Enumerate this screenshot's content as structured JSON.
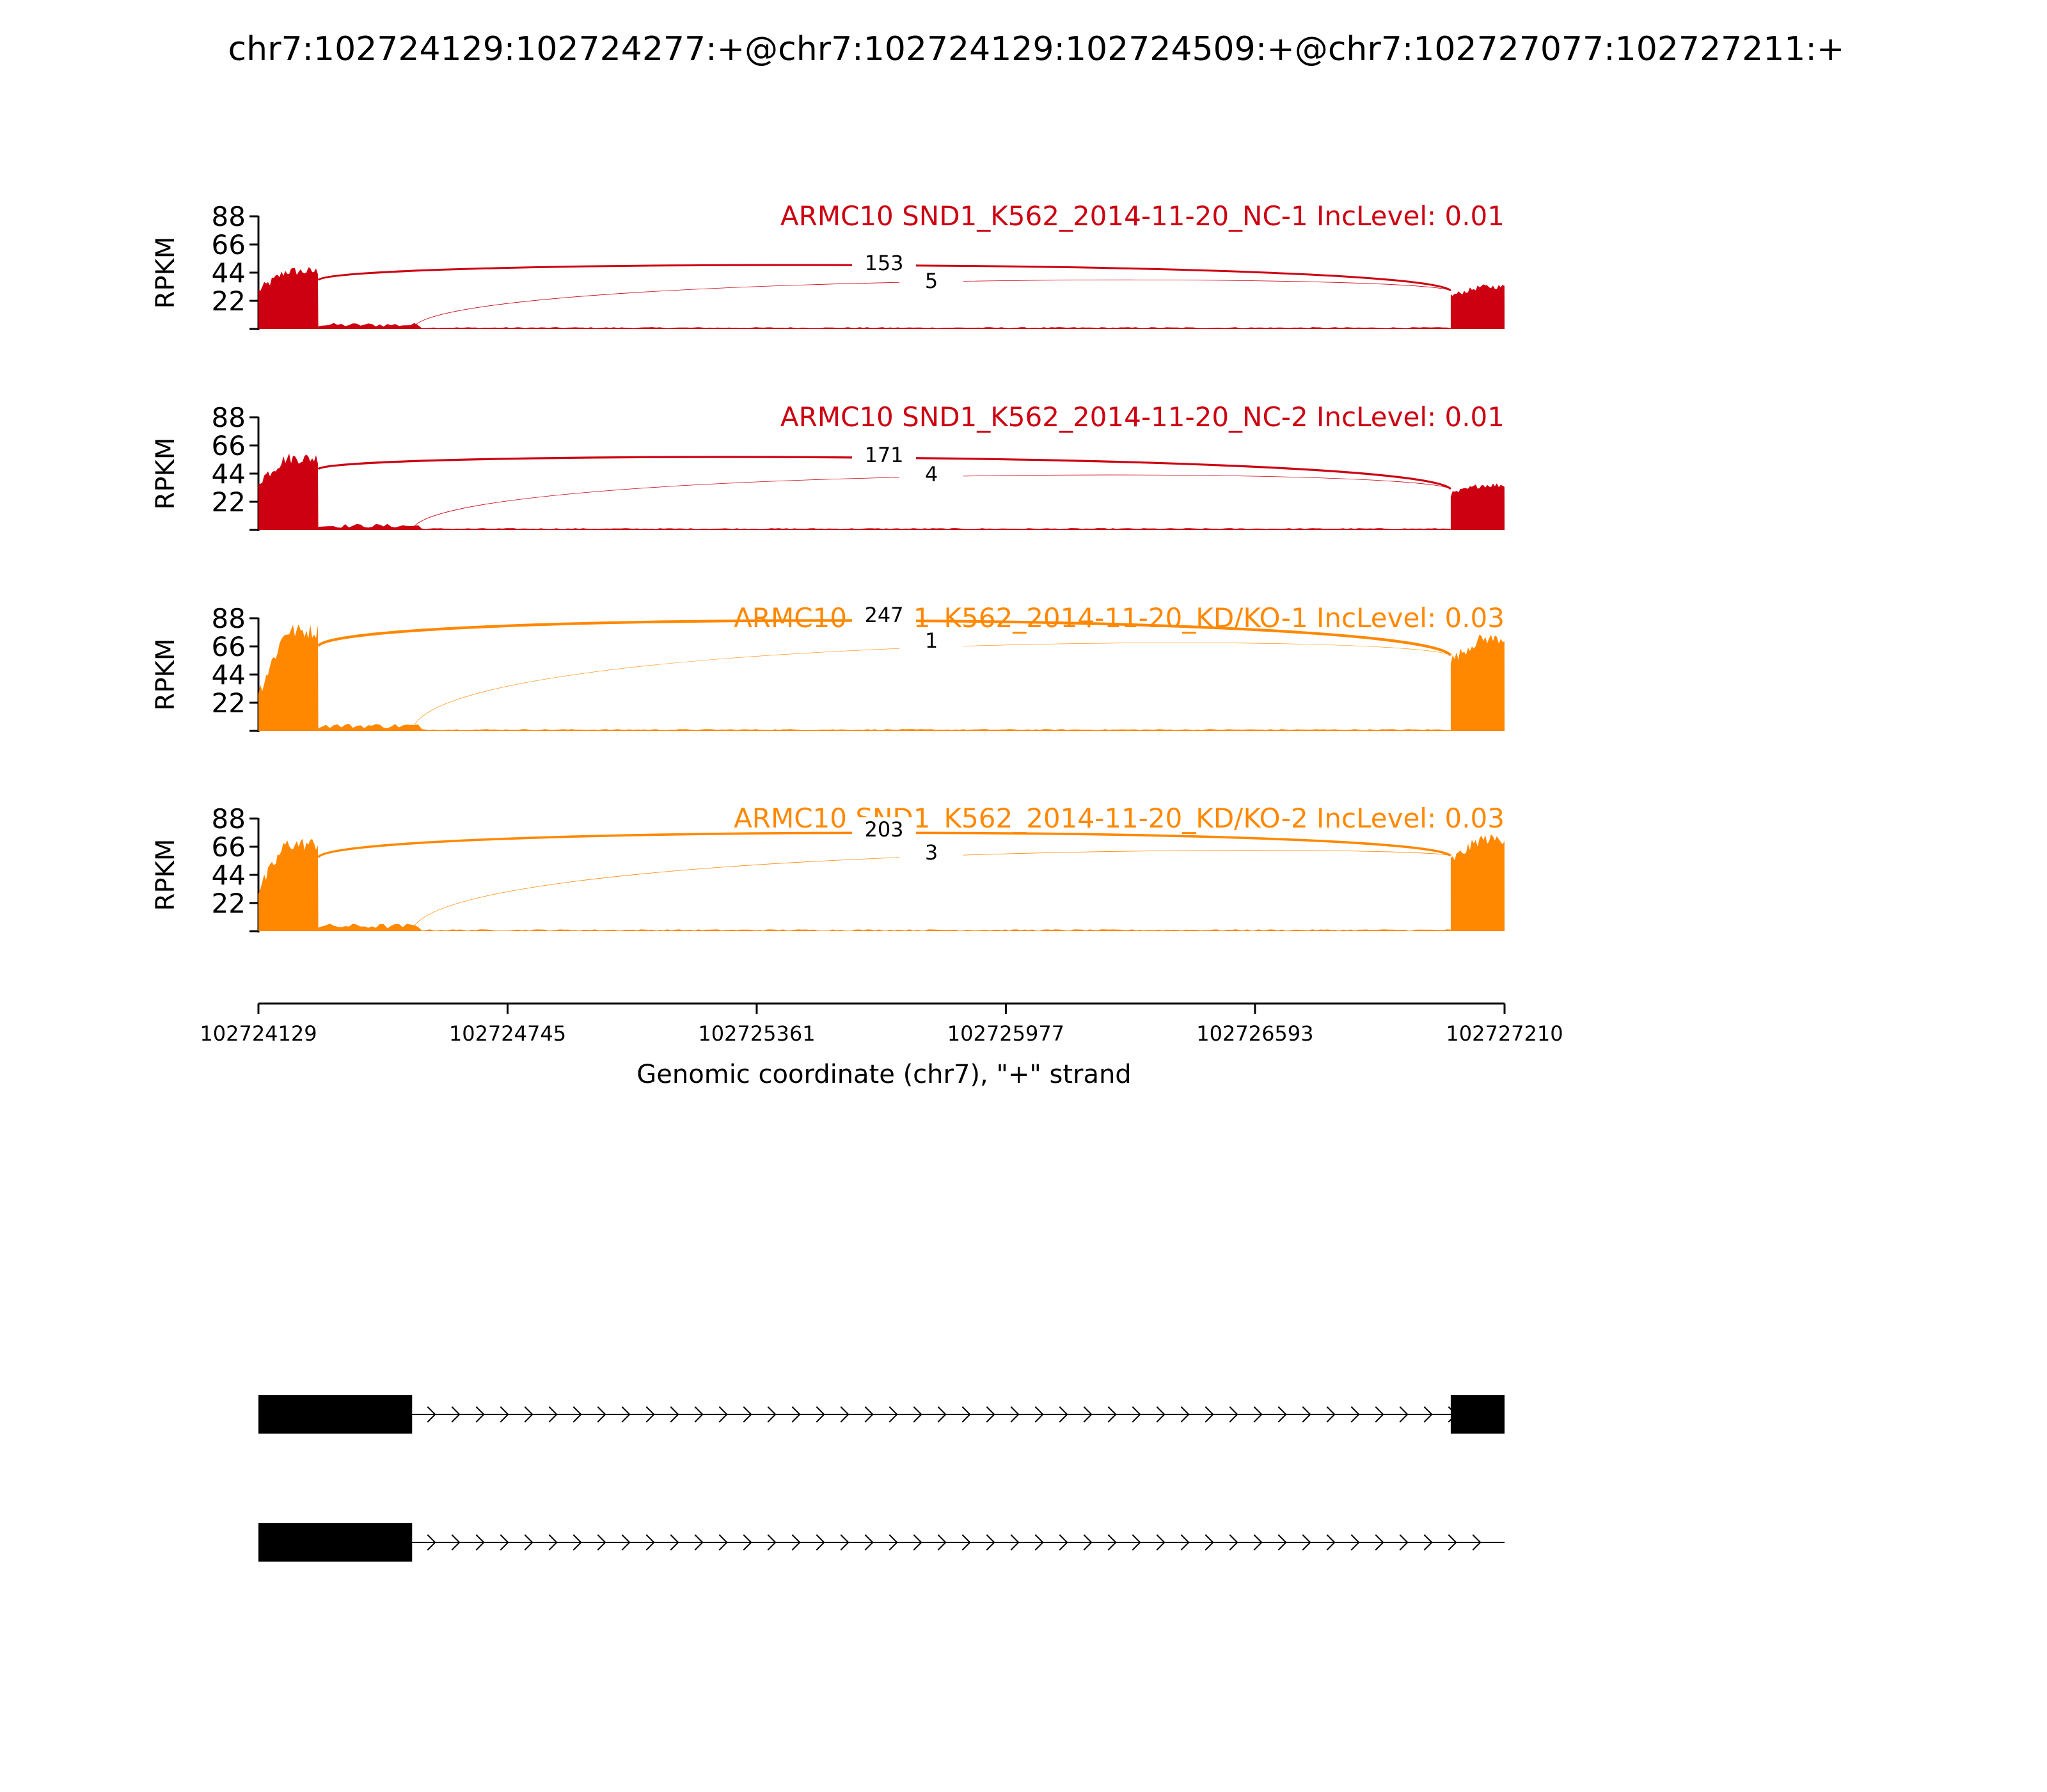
{
  "chart_data": {
    "type": "sashimi",
    "title": "chr7:102724129:102724277:+@chr7:102724129:102724509:+@chr7:102727077:102727211:+",
    "ylabel": "RPKM",
    "yticks": [
      22,
      44,
      66,
      88
    ],
    "ylim": [
      0,
      88
    ],
    "xlabel": "Genomic coordinate (chr7), \"+\" strand",
    "xlim": [
      102724129,
      102727210
    ],
    "xticks": [
      102724129,
      102724745,
      102725361,
      102725977,
      102726593,
      102727210
    ],
    "colors": {
      "nc": "#cc0011",
      "kd": "#ff8800",
      "axis": "#000000"
    },
    "exons": [
      [
        102724129,
        102724277
      ],
      [
        102724277,
        102724509
      ],
      [
        102727077,
        102727210
      ]
    ],
    "tracks": [
      {
        "label": "ARMC10 SND1_K562_2014-11-20_NC-1 IncLevel: 0.01",
        "color_key": "nc",
        "exon_rpkm": {
          "e1": [
            30,
            45
          ],
          "e2": [
            2,
            4
          ],
          "e3": [
            26,
            33
          ]
        },
        "junctions": [
          {
            "from": 102724277,
            "to": 102727077,
            "count": "153",
            "peak": 53,
            "stroke": 3
          },
          {
            "from": 102724509,
            "to": 102727077,
            "count": "5",
            "peak": 42,
            "stroke": 0.8
          }
        ]
      },
      {
        "label": "ARMC10 SND1_K562_2014-11-20_NC-2 IncLevel: 0.01",
        "color_key": "nc",
        "exon_rpkm": {
          "e1": [
            38,
            56
          ],
          "e2": [
            2,
            4
          ],
          "e3": [
            28,
            35
          ]
        },
        "junctions": [
          {
            "from": 102724277,
            "to": 102727077,
            "count": "171",
            "peak": 60,
            "stroke": 3.2
          },
          {
            "from": 102724509,
            "to": 102727077,
            "count": "4",
            "peak": 48,
            "stroke": 0.8
          }
        ]
      },
      {
        "label": "ARMC10 SND1_K562_2014-11-20_KD/KO-1 IncLevel: 0.03",
        "color_key": "kd",
        "exon_rpkm": {
          "e1": [
            30,
            78
          ],
          "e2": [
            2,
            5
          ],
          "e3": [
            55,
            72
          ]
        },
        "junctions": [
          {
            "from": 102724277,
            "to": 102727077,
            "count": "247",
            "peak": 92,
            "stroke": 4.2
          },
          {
            "from": 102724509,
            "to": 102727077,
            "count": "1",
            "peak": 75,
            "stroke": 0.6
          }
        ]
      },
      {
        "label": "ARMC10 SND1_K562_2014-11-20_KD/KO-2 IncLevel: 0.03",
        "color_key": "kd",
        "exon_rpkm": {
          "e1": [
            32,
            68
          ],
          "e2": [
            2,
            5
          ],
          "e3": [
            55,
            72
          ]
        },
        "junctions": [
          {
            "from": 102724277,
            "to": 102727077,
            "count": "203",
            "peak": 81,
            "stroke": 3.6
          },
          {
            "from": 102724509,
            "to": 102727077,
            "count": "3",
            "peak": 66,
            "stroke": 0.8
          }
        ]
      }
    ],
    "isoforms": [
      {
        "exons": [
          [
            102724129,
            102724509
          ],
          [
            102727077,
            102727210
          ]
        ],
        "intron": [
          102724509,
          102727210
        ]
      },
      {
        "exons": [
          [
            102724129,
            102724509
          ]
        ],
        "intron": [
          102724509,
          102727210
        ]
      }
    ]
  }
}
